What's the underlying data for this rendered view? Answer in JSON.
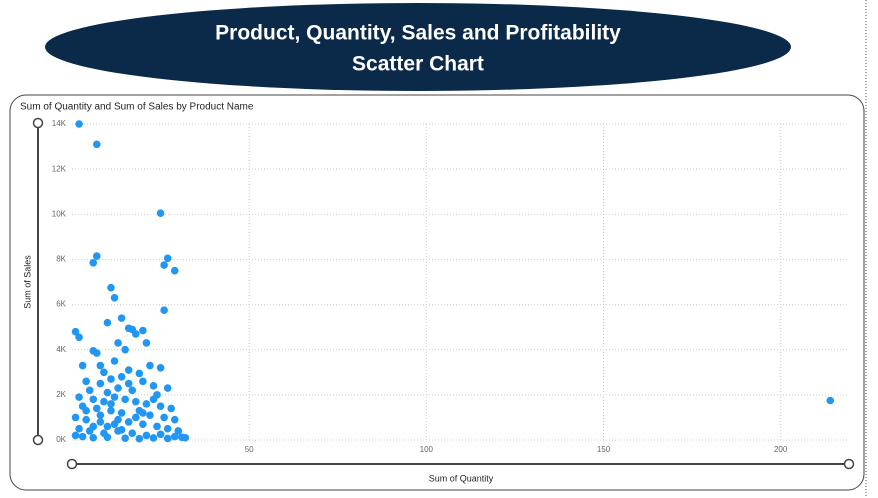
{
  "page_title": [
    "Product, Quantity, Sales and Profitability",
    "Scatter Chart"
  ],
  "chart_data": {
    "type": "scatter",
    "title": "Sum of Quantity and Sum of Sales by Product Name",
    "xlabel": "Sum of Quantity",
    "ylabel": "Sum of Sales",
    "color": "#2196f3",
    "grid": true,
    "xlim": [
      0,
      219
    ],
    "ylim": [
      0,
      14000
    ],
    "xticks": [
      50,
      100,
      150,
      200
    ],
    "yticks": [
      {
        "value": 0,
        "label": "0K"
      },
      {
        "value": 2000,
        "label": "2K"
      },
      {
        "value": 4000,
        "label": "4K"
      },
      {
        "value": 6000,
        "label": "6K"
      },
      {
        "value": 8000,
        "label": "8K"
      },
      {
        "value": 10000,
        "label": "10K"
      },
      {
        "value": 12000,
        "label": "12K"
      },
      {
        "value": 14000,
        "label": "14K"
      }
    ],
    "x": [
      2,
      7,
      25,
      27,
      26,
      29,
      7,
      6,
      11,
      12,
      26,
      1,
      2,
      10,
      14,
      16,
      17,
      20,
      18,
      13,
      21,
      15,
      6,
      7,
      22,
      25,
      3,
      12,
      16,
      9,
      19,
      4,
      8,
      11,
      14,
      20,
      23,
      27,
      5,
      10,
      13,
      17,
      24,
      2,
      6,
      9,
      12,
      15,
      18,
      21,
      25,
      28,
      3,
      7,
      11,
      14,
      19,
      22,
      26,
      29,
      1,
      4,
      8,
      12,
      16,
      20,
      24,
      27,
      30,
      2,
      5,
      9,
      13,
      17,
      21,
      25,
      29,
      31,
      32,
      1,
      3,
      6,
      10,
      15,
      19,
      23,
      27,
      214,
      8,
      10,
      4,
      6,
      14,
      18,
      11,
      16,
      8,
      13,
      20,
      23
    ],
    "values": [
      14000,
      13100,
      10050,
      8050,
      7750,
      7500,
      8150,
      7850,
      6750,
      6300,
      5750,
      4800,
      4550,
      5200,
      5400,
      4950,
      4900,
      4850,
      4700,
      4300,
      4300,
      4000,
      3950,
      3850,
      3300,
      3200,
      3300,
      3500,
      3100,
      3000,
      2950,
      2600,
      2500,
      2700,
      2800,
      2600,
      2400,
      2300,
      2200,
      2100,
      2300,
      2200,
      2000,
      1900,
      1800,
      1700,
      1900,
      1800,
      1700,
      1600,
      1500,
      1400,
      1500,
      1400,
      1300,
      1200,
      1300,
      1100,
      1000,
      900,
      1000,
      900,
      800,
      700,
      800,
      700,
      600,
      500,
      400,
      500,
      400,
      300,
      400,
      300,
      200,
      250,
      150,
      120,
      100,
      200,
      150,
      100,
      120,
      80,
      60,
      90,
      70,
      1750,
      1100,
      600,
      1300,
      600,
      450,
      1000,
      1600,
      2500,
      3300,
      900,
      1200,
      1800
    ]
  }
}
